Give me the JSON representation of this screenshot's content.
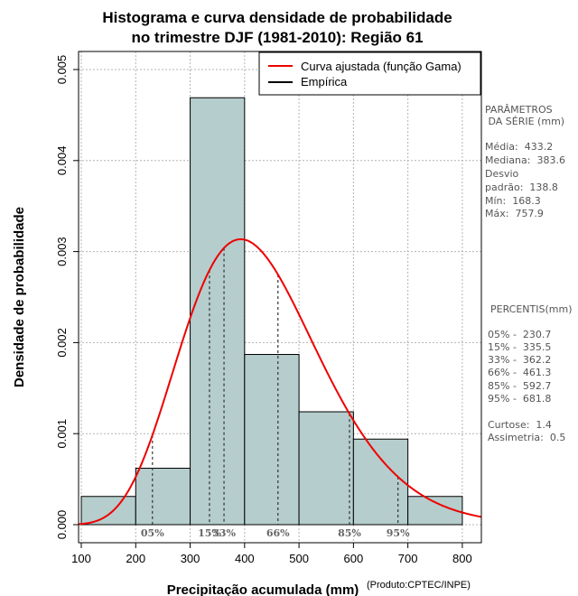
{
  "chart_data": {
    "type": "histogram",
    "title_lines": [
      "Histograma e curva densidade de probabilidade",
      "no trimestre DJF (1981-2010): Região 61"
    ],
    "xlabel": "Precipitação acumulada (mm)",
    "ylabel": "Densidade de probabilidade",
    "credit": "(Produto:CPTEC/INPE)",
    "xlim": [
      95,
      835
    ],
    "ylim": [
      0,
      0.00525
    ],
    "x_ticks": [
      100,
      200,
      300,
      400,
      500,
      600,
      700,
      800
    ],
    "x_tick_labels": [
      "100",
      "200",
      "300",
      "400",
      "500",
      "600",
      "700",
      "800"
    ],
    "y_ticks": [
      0,
      0.001,
      0.002,
      0.003,
      0.004,
      0.005
    ],
    "y_tick_labels": [
      "0.000",
      "0.001",
      "0.002",
      "0.003",
      "0.004",
      "0.005"
    ],
    "grid": true,
    "bins": [
      {
        "x0": 100,
        "x1": 200,
        "density": 0.00031
      },
      {
        "x0": 200,
        "x1": 300,
        "density": 0.00062
      },
      {
        "x0": 300,
        "x1": 400,
        "density": 0.00469
      },
      {
        "x0": 400,
        "x1": 500,
        "density": 0.00187
      },
      {
        "x0": 500,
        "x1": 600,
        "density": 0.00124
      },
      {
        "x0": 600,
        "x1": 700,
        "density": 0.00094
      },
      {
        "x0": 700,
        "x1": 800,
        "density": 0.00031
      }
    ],
    "gamma_fit": {
      "shape": 10.7,
      "scale": 40.5
    },
    "percentile_markers": [
      {
        "label": "05%",
        "x": 230.7
      },
      {
        "label": "15%",
        "x": 335.5
      },
      {
        "label": "33%",
        "x": 362.2
      },
      {
        "label": "66%",
        "x": 461.3
      },
      {
        "label": "85%",
        "x": 592.7
      },
      {
        "label": "95%",
        "x": 681.8
      }
    ],
    "legend": {
      "position": "top-right",
      "entries": [
        {
          "label": "Curva ajustada (função Gama)",
          "color": "#ee0000"
        },
        {
          "label": "Empírica",
          "color": "#000000"
        }
      ]
    },
    "colors": {
      "bar_fill": "#b5cdcc",
      "bar_stroke": "#000000",
      "curve": "#ee0000",
      "grid": "#b3b3b3",
      "marker": "#333333"
    }
  },
  "side_panel": {
    "params_title": [
      "PARÂMETROS",
      " DA SÉRIE (mm)"
    ],
    "params": [
      "Média:  433.2",
      "Mediana:  383.6",
      "Desvio",
      "padrão:  138.8",
      "Mín:  168.3",
      "Máx:  757.9"
    ],
    "percentis_title": "PERCENTIS(mm)",
    "percentis": [
      "05% -  230.7",
      "15% -  335.5",
      "33% -  362.2",
      "66% -  461.3",
      "85% -  592.7",
      "95% -  681.8"
    ],
    "stats": [
      "Curtose:  1.4",
      "Assimetria:  0.5"
    ]
  }
}
